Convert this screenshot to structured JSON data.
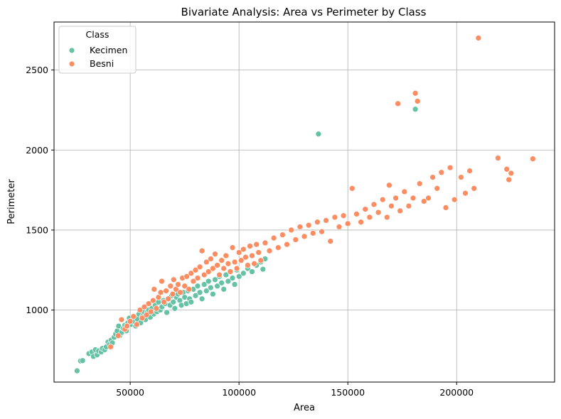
{
  "chart_data": {
    "type": "scatter",
    "title": "Bivariate Analysis: Area vs Perimeter by Class",
    "xlabel": "Area",
    "ylabel": "Perimeter",
    "xlim": [
      15000,
      245000
    ],
    "ylim": [
      550,
      2800
    ],
    "xticks": [
      50000,
      100000,
      150000,
      200000
    ],
    "yticks": [
      1000,
      1500,
      2000,
      2500
    ],
    "grid": true,
    "legend": {
      "title": "Class",
      "placement": "top-left"
    },
    "series": [
      {
        "name": "Kecimen",
        "color": "#66c2a5",
        "points": [
          [
            25600,
            620
          ],
          [
            27200,
            682
          ],
          [
            28100,
            684
          ],
          [
            31000,
            728
          ],
          [
            32400,
            738
          ],
          [
            33100,
            710
          ],
          [
            34000,
            752
          ],
          [
            34800,
            720
          ],
          [
            35500,
            745
          ],
          [
            36700,
            738
          ],
          [
            37200,
            760
          ],
          [
            38300,
            752
          ],
          [
            39000,
            770
          ],
          [
            39800,
            800
          ],
          [
            40500,
            785
          ],
          [
            41200,
            812
          ],
          [
            41800,
            795
          ],
          [
            42600,
            830
          ],
          [
            43300,
            850
          ],
          [
            44000,
            870
          ],
          [
            44700,
            900
          ],
          [
            45200,
            840
          ],
          [
            46100,
            860
          ],
          [
            46800,
            885
          ],
          [
            47500,
            905
          ],
          [
            48200,
            870
          ],
          [
            48900,
            920
          ],
          [
            49600,
            950
          ],
          [
            50300,
            910
          ],
          [
            51000,
            930
          ],
          [
            51800,
            960
          ],
          [
            52500,
            900
          ],
          [
            53200,
            945
          ],
          [
            54000,
            975
          ],
          [
            54800,
            920
          ],
          [
            55600,
            960
          ],
          [
            56300,
            990
          ],
          [
            57000,
            940
          ],
          [
            57800,
            985
          ],
          [
            58500,
            1000
          ],
          [
            59200,
            955
          ],
          [
            60000,
            1010
          ],
          [
            60800,
            975
          ],
          [
            61500,
            1030
          ],
          [
            62300,
            990
          ],
          [
            63000,
            1050
          ],
          [
            63800,
            1000
          ],
          [
            64600,
            1020
          ],
          [
            65300,
            1060
          ],
          [
            66000,
            1040
          ],
          [
            66800,
            985
          ],
          [
            67500,
            1070
          ],
          [
            68300,
            1030
          ],
          [
            69000,
            1090
          ],
          [
            69800,
            1050
          ],
          [
            70500,
            1010
          ],
          [
            71300,
            1080
          ],
          [
            72000,
            1100
          ],
          [
            72800,
            1060
          ],
          [
            73500,
            1030
          ],
          [
            74300,
            1110
          ],
          [
            75000,
            1080
          ],
          [
            75800,
            1040
          ],
          [
            76600,
            1120
          ],
          [
            77300,
            1070
          ],
          [
            78000,
            1050
          ],
          [
            79000,
            1130
          ],
          [
            80000,
            1090
          ],
          [
            81000,
            1150
          ],
          [
            82000,
            1110
          ],
          [
            83000,
            1070
          ],
          [
            84000,
            1160
          ],
          [
            85000,
            1120
          ],
          [
            86000,
            1180
          ],
          [
            87000,
            1140
          ],
          [
            88000,
            1100
          ],
          [
            89000,
            1190
          ],
          [
            90000,
            1150
          ],
          [
            91000,
            1210
          ],
          [
            92000,
            1170
          ],
          [
            93000,
            1130
          ],
          [
            94000,
            1220
          ],
          [
            95000,
            1180
          ],
          [
            96000,
            1240
          ],
          [
            97000,
            1200
          ],
          [
            98000,
            1160
          ],
          [
            99000,
            1250
          ],
          [
            100000,
            1210
          ],
          [
            102000,
            1230
          ],
          [
            104000,
            1260
          ],
          [
            106000,
            1240
          ],
          [
            108000,
            1280
          ],
          [
            110000,
            1300
          ],
          [
            111000,
            1255
          ],
          [
            112000,
            1320
          ],
          [
            136500,
            2100
          ],
          [
            181000,
            2255
          ]
        ]
      },
      {
        "name": "Besni",
        "color": "#fc8d62",
        "points": [
          [
            41000,
            770
          ],
          [
            44500,
            840
          ],
          [
            46000,
            940
          ],
          [
            47500,
            880
          ],
          [
            48500,
            900
          ],
          [
            50000,
            930
          ],
          [
            51500,
            960
          ],
          [
            53000,
            910
          ],
          [
            54500,
            1000
          ],
          [
            55500,
            950
          ],
          [
            56500,
            1020
          ],
          [
            57500,
            970
          ],
          [
            58500,
            1040
          ],
          [
            59500,
            990
          ],
          [
            60500,
            1060
          ],
          [
            61000,
            1130
          ],
          [
            62000,
            1010
          ],
          [
            63000,
            1080
          ],
          [
            64000,
            1110
          ],
          [
            64500,
            1180
          ],
          [
            65500,
            1050
          ],
          [
            66500,
            1120
          ],
          [
            67500,
            1070
          ],
          [
            68500,
            1150
          ],
          [
            69500,
            1100
          ],
          [
            70000,
            1190
          ],
          [
            71000,
            1130
          ],
          [
            72000,
            1160
          ],
          [
            73000,
            1110
          ],
          [
            74000,
            1200
          ],
          [
            75000,
            1150
          ],
          [
            76000,
            1210
          ],
          [
            77000,
            1130
          ],
          [
            78000,
            1230
          ],
          [
            79000,
            1180
          ],
          [
            80000,
            1250
          ],
          [
            81000,
            1200
          ],
          [
            82000,
            1270
          ],
          [
            83000,
            1370
          ],
          [
            84000,
            1220
          ],
          [
            85000,
            1300
          ],
          [
            86000,
            1240
          ],
          [
            87000,
            1320
          ],
          [
            88000,
            1260
          ],
          [
            89000,
            1350
          ],
          [
            90000,
            1280
          ],
          [
            91000,
            1220
          ],
          [
            92000,
            1310
          ],
          [
            93000,
            1260
          ],
          [
            94000,
            1340
          ],
          [
            95000,
            1290
          ],
          [
            96000,
            1240
          ],
          [
            97000,
            1390
          ],
          [
            98000,
            1300
          ],
          [
            99000,
            1260
          ],
          [
            100000,
            1360
          ],
          [
            101000,
            1310
          ],
          [
            102000,
            1380
          ],
          [
            103000,
            1330
          ],
          [
            104000,
            1280
          ],
          [
            105000,
            1400
          ],
          [
            106000,
            1340
          ],
          [
            107000,
            1290
          ],
          [
            108000,
            1410
          ],
          [
            109000,
            1360
          ],
          [
            110000,
            1310
          ],
          [
            112000,
            1420
          ],
          [
            114000,
            1370
          ],
          [
            116000,
            1450
          ],
          [
            118000,
            1390
          ],
          [
            120000,
            1470
          ],
          [
            122000,
            1410
          ],
          [
            124000,
            1500
          ],
          [
            126000,
            1440
          ],
          [
            128000,
            1520
          ],
          [
            130000,
            1460
          ],
          [
            132000,
            1530
          ],
          [
            134000,
            1480
          ],
          [
            136000,
            1550
          ],
          [
            138000,
            1490
          ],
          [
            140000,
            1560
          ],
          [
            142000,
            1430
          ],
          [
            144000,
            1580
          ],
          [
            146000,
            1520
          ],
          [
            148000,
            1590
          ],
          [
            150000,
            1540
          ],
          [
            152000,
            1760
          ],
          [
            154000,
            1600
          ],
          [
            156000,
            1550
          ],
          [
            158000,
            1630
          ],
          [
            160000,
            1580
          ],
          [
            162000,
            1660
          ],
          [
            164000,
            1610
          ],
          [
            166000,
            1690
          ],
          [
            168000,
            1580
          ],
          [
            169000,
            1780
          ],
          [
            170000,
            1650
          ],
          [
            172000,
            1700
          ],
          [
            173000,
            2290
          ],
          [
            174000,
            1620
          ],
          [
            176000,
            1740
          ],
          [
            178000,
            1650
          ],
          [
            180000,
            1700
          ],
          [
            181000,
            2355
          ],
          [
            182000,
            2305
          ],
          [
            183000,
            1790
          ],
          [
            185000,
            1680
          ],
          [
            187000,
            1700
          ],
          [
            189000,
            1830
          ],
          [
            191000,
            1760
          ],
          [
            193000,
            1860
          ],
          [
            195000,
            1640
          ],
          [
            197000,
            1890
          ],
          [
            199000,
            1690
          ],
          [
            202000,
            1830
          ],
          [
            204000,
            1730
          ],
          [
            206000,
            1870
          ],
          [
            208000,
            1760
          ],
          [
            210000,
            2700
          ],
          [
            219000,
            1950
          ],
          [
            223000,
            1880
          ],
          [
            224000,
            1815
          ],
          [
            225000,
            1855
          ],
          [
            235000,
            1945
          ]
        ]
      }
    ]
  }
}
